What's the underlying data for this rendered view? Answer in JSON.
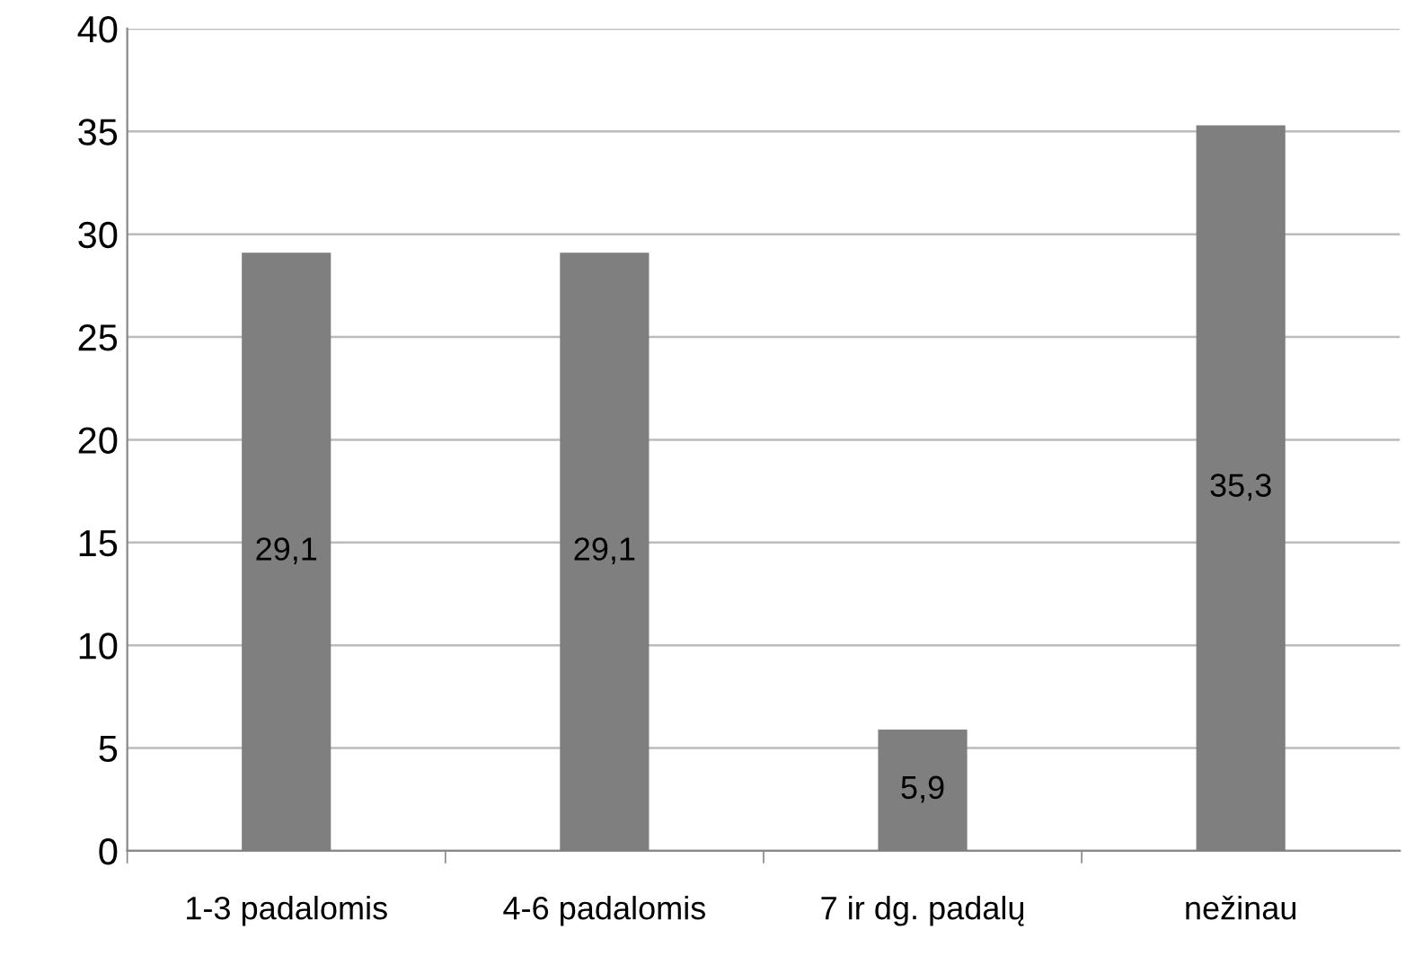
{
  "chart_data": {
    "type": "bar",
    "categories": [
      "1-3 padalomis",
      "4-6 padalomis",
      "7 ir dg. padalų",
      "nežinau"
    ],
    "values": [
      29.1,
      29.1,
      5.9,
      35.3
    ],
    "color": "#7f7f7f",
    "value_labels": [
      "29,1",
      "29,1",
      "5,9",
      "35,3"
    ],
    "ylim": [
      0,
      40
    ],
    "yticks": [
      0,
      5,
      10,
      15,
      20,
      25,
      30,
      35,
      40
    ],
    "grid": "y",
    "legend": false
  }
}
